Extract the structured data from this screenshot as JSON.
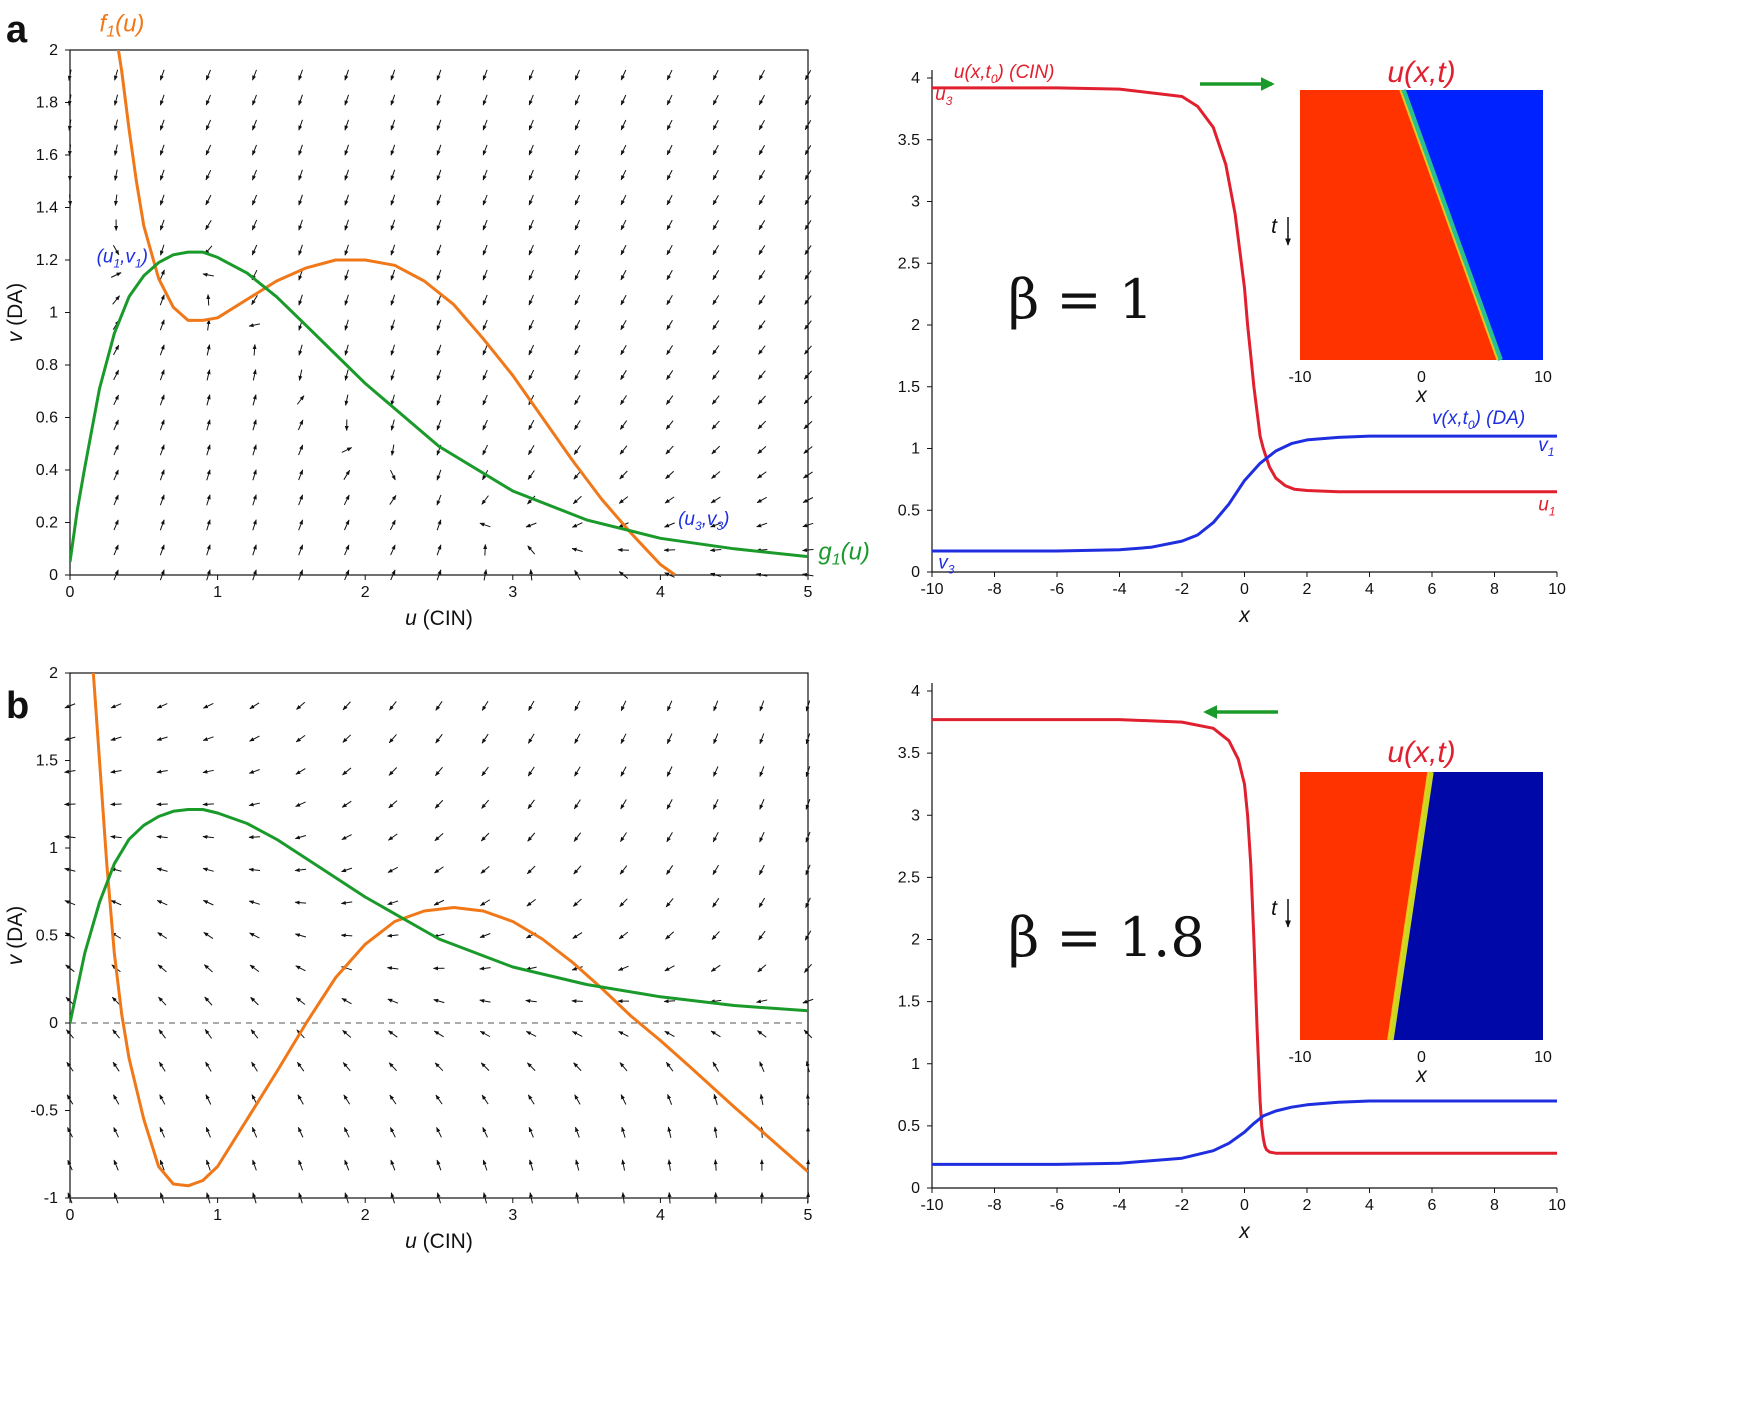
{
  "figure": {
    "panel_a_letter": "a",
    "panel_b_letter": "b"
  },
  "colors": {
    "nullcline_f": "#f07818",
    "nullcline_g": "#1a9a2a",
    "u_profile": "#e0202e",
    "v_profile": "#1f2fe0",
    "arrow": "#f3a51d",
    "axis": "#111111",
    "heat_red": "#ff3300",
    "heat_blue_a": "#0022ff",
    "heat_blue_b": "#0008a8",
    "front_mid_a": "#28c090",
    "front_mid_b": "#c8d820"
  },
  "chart_data": [
    {
      "id": "a-left",
      "type": "line",
      "plot_kind": "phase-plane",
      "xlabel": "u (CIN)",
      "ylabel": "v (DA)",
      "xlim": [
        0,
        5
      ],
      "ylim": [
        0,
        2
      ],
      "xticks": [
        0,
        1,
        2,
        3,
        4,
        5
      ],
      "yticks": [
        0,
        0.2,
        0.4,
        0.6,
        0.8,
        1,
        1.2,
        1.4,
        1.6,
        1.8,
        2
      ],
      "vector_field": true,
      "zero_line": false,
      "series": [
        {
          "name": "f1(u)",
          "color_key": "nullcline_f",
          "x": [
            0.3,
            0.35,
            0.4,
            0.45,
            0.5,
            0.6,
            0.7,
            0.8,
            0.9,
            1.0,
            1.2,
            1.4,
            1.6,
            1.8,
            2.0,
            2.2,
            2.4,
            2.6,
            2.8,
            3.0,
            3.2,
            3.4,
            3.6,
            3.8,
            4.0,
            4.1
          ],
          "y": [
            2.1,
            1.92,
            1.7,
            1.5,
            1.33,
            1.13,
            1.02,
            0.97,
            0.97,
            0.98,
            1.05,
            1.12,
            1.17,
            1.2,
            1.2,
            1.18,
            1.12,
            1.03,
            0.9,
            0.76,
            0.6,
            0.44,
            0.29,
            0.16,
            0.04,
            0.0
          ]
        },
        {
          "name": "g1(u)",
          "color_key": "nullcline_g",
          "x": [
            0,
            0.05,
            0.1,
            0.2,
            0.3,
            0.4,
            0.5,
            0.6,
            0.7,
            0.8,
            0.9,
            1.0,
            1.2,
            1.4,
            1.6,
            1.8,
            2.0,
            2.5,
            3.0,
            3.5,
            4.0,
            4.5,
            5.0
          ],
          "y": [
            0.05,
            0.25,
            0.41,
            0.71,
            0.92,
            1.06,
            1.14,
            1.19,
            1.22,
            1.23,
            1.23,
            1.21,
            1.15,
            1.06,
            0.95,
            0.84,
            0.73,
            0.49,
            0.32,
            0.21,
            0.14,
            0.1,
            0.07
          ]
        }
      ],
      "annotations": [
        {
          "text_main": "f",
          "text_sub": "1",
          "text_tail": "(u)",
          "x": 0.2,
          "y": 2.07,
          "color_key": "nullcline_f"
        },
        {
          "text_main": "g",
          "text_sub": "1",
          "text_tail": "(u)",
          "x": 5.07,
          "y": 0.06,
          "color_key": "nullcline_g"
        },
        {
          "text_main": "(u",
          "text_sub": "1",
          "text_mid": ",v",
          "text_sub2": "1",
          "text_tail": ")",
          "x": 0.18,
          "y": 1.19,
          "color_key": "v_profile"
        },
        {
          "text_main": "(u",
          "text_sub": "3",
          "text_mid": ",v",
          "text_sub2": "3",
          "text_tail": ")",
          "x": 4.12,
          "y": 0.19,
          "color_key": "v_profile"
        }
      ]
    },
    {
      "id": "a-right",
      "type": "line",
      "plot_kind": "profile",
      "xlabel": "x",
      "ylabel": "",
      "xlim": [
        -10,
        10
      ],
      "ylim": [
        0,
        4
      ],
      "xticks": [
        -10,
        -8,
        -6,
        -4,
        -2,
        0,
        2,
        4,
        6,
        8,
        10
      ],
      "yticks": [
        0,
        0.5,
        1,
        1.5,
        2,
        2.5,
        3,
        3.5,
        4
      ],
      "beta_label": "β = 1",
      "series": [
        {
          "name": "u(x,t0) (CIN)",
          "color_key": "u_profile",
          "x": [
            -10,
            -8,
            -6,
            -4,
            -2,
            -1.5,
            -1.0,
            -0.6,
            -0.3,
            -0.1,
            0.0,
            0.1,
            0.2,
            0.3,
            0.4,
            0.5,
            0.6,
            0.8,
            1.0,
            1.3,
            1.6,
            2.0,
            3.0,
            4.0,
            6.0,
            10.0
          ],
          "y": [
            3.92,
            3.92,
            3.92,
            3.91,
            3.85,
            3.77,
            3.6,
            3.3,
            2.9,
            2.5,
            2.3,
            2.0,
            1.75,
            1.5,
            1.3,
            1.1,
            1.0,
            0.85,
            0.76,
            0.7,
            0.67,
            0.66,
            0.65,
            0.65,
            0.65,
            0.65
          ]
        },
        {
          "name": "v(x,t0) (DA)",
          "color_key": "v_profile",
          "x": [
            -10,
            -8,
            -6,
            -4,
            -3,
            -2,
            -1.5,
            -1.0,
            -0.5,
            0.0,
            0.5,
            1.0,
            1.5,
            2.0,
            3.0,
            4.0,
            6.0,
            10.0
          ],
          "y": [
            0.17,
            0.17,
            0.17,
            0.18,
            0.2,
            0.25,
            0.3,
            0.4,
            0.55,
            0.74,
            0.88,
            0.98,
            1.04,
            1.07,
            1.09,
            1.1,
            1.1,
            1.1
          ]
        }
      ],
      "annotations": [
        {
          "text_main": "u(x,t",
          "text_sub": "0",
          "text_tail": ") (CIN)",
          "x": -9.3,
          "y": 4.0,
          "color_key": "u_profile"
        },
        {
          "text_main": "u",
          "text_sub": "3",
          "text_tail": "",
          "x": -9.9,
          "y": 3.82,
          "color_key": "u_profile"
        },
        {
          "text_main": "v(x,t",
          "text_sub": "0",
          "text_tail": ") (DA)",
          "x": 6.0,
          "y": 1.2,
          "color_key": "v_profile"
        },
        {
          "text_main": "v",
          "text_sub": "1",
          "text_tail": "",
          "x": 9.4,
          "y": 0.98,
          "color_key": "v_profile"
        },
        {
          "text_main": "u",
          "text_sub": "1",
          "text_tail": "",
          "x": 9.4,
          "y": 0.5,
          "color_key": "u_profile"
        },
        {
          "text_main": "v",
          "text_sub": "3",
          "text_tail": "",
          "x": -9.8,
          "y": 0.03,
          "color_key": "v_profile"
        }
      ],
      "direction_arrow": "right",
      "inset": {
        "type": "heatmap",
        "title": "u(x,t)",
        "xlabel": "x",
        "ylabel": "t",
        "xlim": [
          -10,
          10
        ],
        "xticks": [
          -10,
          0,
          10
        ],
        "front_x_start": -1.5,
        "front_x_end": 6.5,
        "front_color_key": "front_mid_a",
        "right_color_key": "heat_blue_a"
      }
    },
    {
      "id": "b-left",
      "type": "line",
      "plot_kind": "phase-plane",
      "xlabel": "u (CIN)",
      "ylabel": "v (DA)",
      "xlim": [
        0,
        5
      ],
      "ylim": [
        -1,
        2
      ],
      "xticks": [
        0,
        1,
        2,
        3,
        4,
        5
      ],
      "yticks": [
        -1,
        -0.5,
        0,
        0.5,
        1,
        1.5,
        2
      ],
      "vector_field": true,
      "zero_line": true,
      "series": [
        {
          "name": "f1(u)",
          "color_key": "nullcline_f",
          "x": [
            0.15,
            0.2,
            0.25,
            0.3,
            0.35,
            0.4,
            0.5,
            0.6,
            0.7,
            0.8,
            0.9,
            1.0,
            1.2,
            1.4,
            1.6,
            1.8,
            2.0,
            2.2,
            2.4,
            2.6,
            2.8,
            3.0,
            3.2,
            3.4,
            3.6,
            3.8,
            4.0,
            4.2,
            4.5,
            5.0
          ],
          "y": [
            2.1,
            1.5,
            0.9,
            0.4,
            0.05,
            -0.2,
            -0.55,
            -0.82,
            -0.92,
            -0.93,
            -0.9,
            -0.82,
            -0.55,
            -0.28,
            0.0,
            0.26,
            0.45,
            0.58,
            0.64,
            0.66,
            0.64,
            0.58,
            0.48,
            0.35,
            0.2,
            0.04,
            -0.1,
            -0.25,
            -0.48,
            -0.85
          ]
        },
        {
          "name": "g1(u)",
          "color_key": "nullcline_g",
          "x": [
            0,
            0.05,
            0.1,
            0.2,
            0.3,
            0.4,
            0.5,
            0.6,
            0.7,
            0.8,
            0.9,
            1.0,
            1.2,
            1.4,
            1.6,
            1.8,
            2.0,
            2.5,
            3.0,
            3.5,
            4.0,
            4.5,
            5.0
          ],
          "y": [
            0.0,
            0.2,
            0.4,
            0.69,
            0.91,
            1.05,
            1.13,
            1.18,
            1.21,
            1.22,
            1.22,
            1.2,
            1.14,
            1.05,
            0.94,
            0.83,
            0.72,
            0.48,
            0.32,
            0.22,
            0.15,
            0.1,
            0.07
          ]
        }
      ],
      "annotations": []
    },
    {
      "id": "b-right",
      "type": "line",
      "plot_kind": "profile",
      "xlabel": "x",
      "ylabel": "",
      "xlim": [
        -10,
        10
      ],
      "ylim": [
        0,
        4
      ],
      "xticks": [
        -10,
        -8,
        -6,
        -4,
        -2,
        0,
        2,
        4,
        6,
        8,
        10
      ],
      "yticks": [
        0,
        0.5,
        1,
        1.5,
        2,
        2.5,
        3,
        3.5,
        4
      ],
      "beta_label": "β = 1.8",
      "series": [
        {
          "name": "",
          "color_key": "u_profile",
          "x": [
            -10,
            -8,
            -6,
            -4,
            -2,
            -1.0,
            -0.5,
            -0.2,
            0.0,
            0.1,
            0.2,
            0.3,
            0.4,
            0.5,
            0.55,
            0.6,
            0.65,
            0.7,
            0.8,
            1.0,
            2.0,
            4.0,
            10.0
          ],
          "y": [
            3.77,
            3.77,
            3.77,
            3.77,
            3.75,
            3.7,
            3.6,
            3.45,
            3.25,
            3.0,
            2.6,
            2.0,
            1.3,
            0.7,
            0.5,
            0.4,
            0.34,
            0.31,
            0.29,
            0.28,
            0.28,
            0.28,
            0.28
          ]
        },
        {
          "name": "",
          "color_key": "v_profile",
          "x": [
            -10,
            -8,
            -6,
            -4,
            -2,
            -1.0,
            -0.5,
            0.0,
            0.3,
            0.6,
            1.0,
            1.5,
            2.0,
            3.0,
            4.0,
            6.0,
            10.0
          ],
          "y": [
            0.19,
            0.19,
            0.19,
            0.2,
            0.24,
            0.3,
            0.36,
            0.45,
            0.52,
            0.58,
            0.62,
            0.65,
            0.67,
            0.69,
            0.7,
            0.7,
            0.7
          ]
        }
      ],
      "annotations": [],
      "direction_arrow": "left",
      "inset": {
        "type": "heatmap",
        "title": "u(x,t)",
        "xlabel": "x",
        "ylabel": "t",
        "xlim": [
          -10,
          10
        ],
        "xticks": [
          -10,
          0,
          10
        ],
        "front_x_start": 0.8,
        "front_x_end": -2.5,
        "front_color_key": "front_mid_b",
        "right_color_key": "heat_blue_b"
      }
    }
  ]
}
